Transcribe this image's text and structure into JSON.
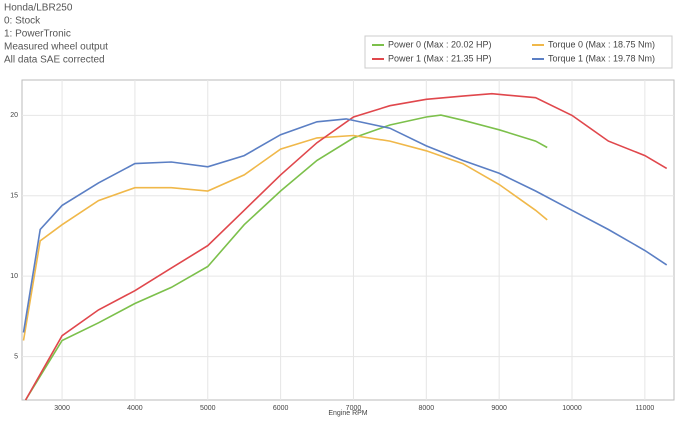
{
  "chart_data": {
    "type": "line",
    "annotations": [
      "Honda/LBR250",
      "0: Stock",
      "1: PowerTronic",
      "Measured wheel output",
      "All data SAE corrected"
    ],
    "x_label": "Engine RPM",
    "xlim": [
      2450,
      11400
    ],
    "ylim": [
      2.3,
      22.2
    ],
    "xticks": [
      3000,
      4000,
      5000,
      6000,
      7000,
      8000,
      9000,
      10000,
      11000
    ],
    "yticks": [
      5,
      10,
      15,
      20
    ],
    "grid": true,
    "series": [
      {
        "name": "Power 0 (Max : 20.02 HP)",
        "color": "#7cc04b",
        "x": [
          2500,
          3000,
          3500,
          4000,
          4500,
          5000,
          5500,
          6000,
          6500,
          7000,
          7500,
          8000,
          8200,
          8500,
          9000,
          9500,
          9660
        ],
        "values": [
          2.3,
          6.0,
          7.1,
          8.3,
          9.3,
          10.6,
          13.2,
          15.3,
          17.2,
          18.6,
          19.4,
          19.9,
          20.02,
          19.7,
          19.1,
          18.4,
          18.0
        ]
      },
      {
        "name": "Torque 0 (Max : 18.75 Nm)",
        "color": "#f0b84a",
        "x": [
          2470,
          2700,
          3000,
          3500,
          4000,
          4500,
          5000,
          5500,
          6000,
          6500,
          7000,
          7500,
          8000,
          8500,
          9000,
          9500,
          9660
        ],
        "values": [
          6.0,
          12.2,
          13.2,
          14.7,
          15.5,
          15.5,
          15.3,
          16.3,
          17.9,
          18.6,
          18.75,
          18.4,
          17.8,
          17.0,
          15.7,
          14.1,
          13.5
        ]
      },
      {
        "name": "Power 1 (Max : 21.35 HP)",
        "color": "#e0474c",
        "x": [
          2500,
          3000,
          3500,
          4000,
          4500,
          5000,
          5500,
          6000,
          6500,
          7000,
          7500,
          8000,
          8500,
          8900,
          9500,
          10000,
          10500,
          11000,
          11300
        ],
        "values": [
          2.3,
          6.3,
          7.9,
          9.1,
          10.5,
          11.9,
          14.1,
          16.3,
          18.3,
          19.9,
          20.6,
          21.0,
          21.2,
          21.35,
          21.1,
          20.0,
          18.4,
          17.5,
          16.7
        ]
      },
      {
        "name": "Torque 1 (Max : 19.78 Nm)",
        "color": "#5b7fc4",
        "x": [
          2470,
          2700,
          3000,
          3500,
          4000,
          4500,
          5000,
          5500,
          6000,
          6500,
          6900,
          7500,
          8000,
          8500,
          9000,
          9500,
          10000,
          10500,
          11000,
          11300
        ],
        "values": [
          6.5,
          12.9,
          14.4,
          15.8,
          17.0,
          17.1,
          16.8,
          17.5,
          18.8,
          19.6,
          19.78,
          19.2,
          18.1,
          17.2,
          16.4,
          15.3,
          14.1,
          12.9,
          11.6,
          10.7
        ]
      }
    ]
  }
}
